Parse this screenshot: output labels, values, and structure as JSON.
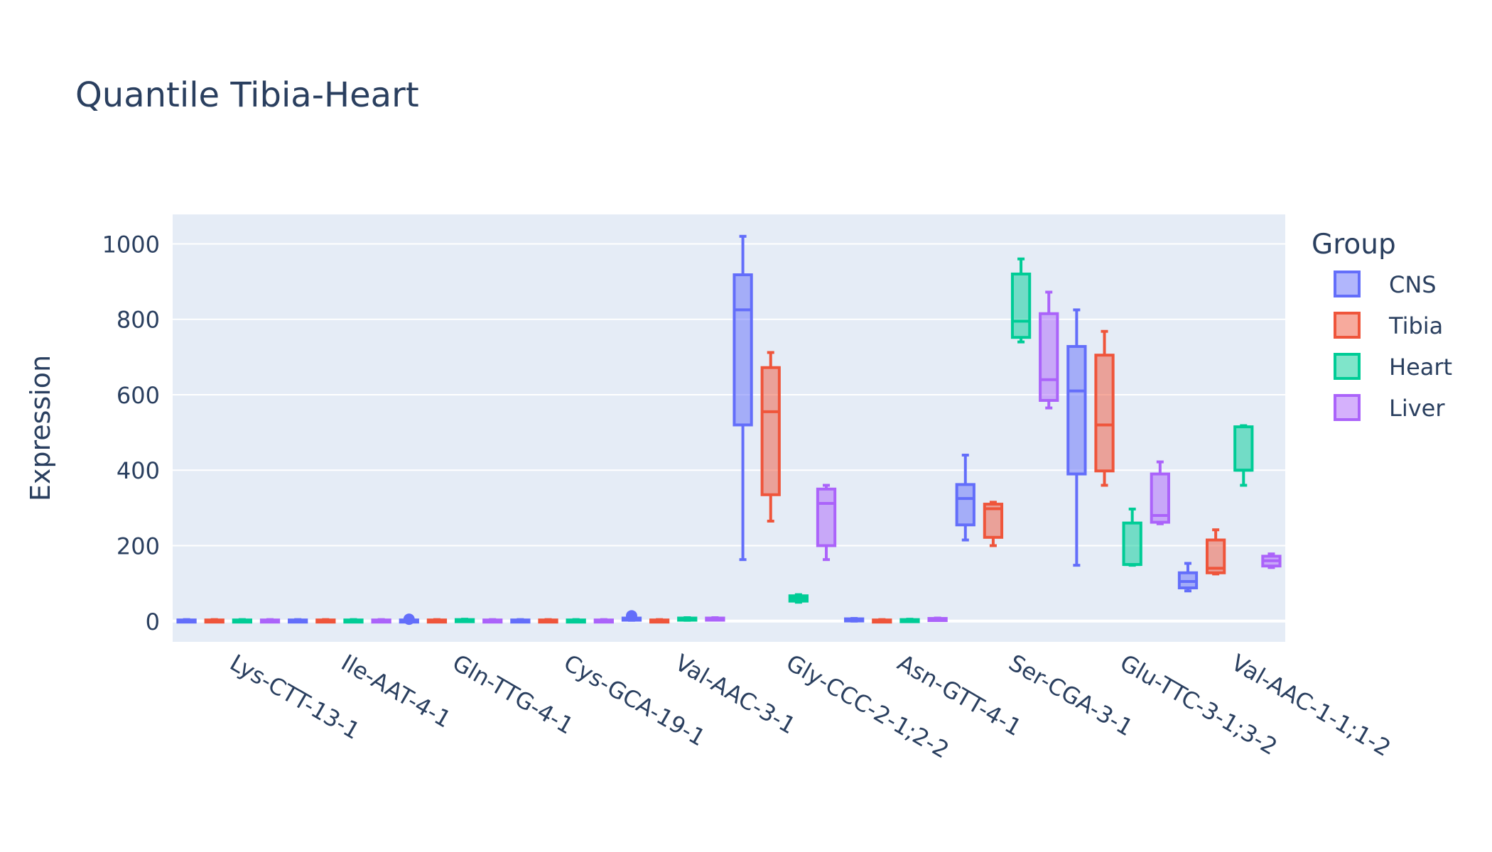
{
  "chart_data": {
    "type": "box",
    "title": "Quantile Tibia-Heart",
    "xlabel": "",
    "ylabel": "Expression",
    "ylim": [
      -55,
      1078
    ],
    "yticks": [
      0,
      200,
      400,
      600,
      800,
      1000
    ],
    "grid": true,
    "legend": {
      "title": "Group",
      "placement": "right"
    },
    "categories": [
      "Lys-CTT-13-1",
      "Ile-AAT-4-1",
      "Gln-TTG-4-1",
      "Cys-GCA-19-1",
      "Val-AAC-3-1",
      "Gly-CCC-2-1;2-2",
      "Asn-GTT-4-1",
      "Ser-CGA-3-1",
      "Glu-TTC-3-1;3-2",
      "Val-AAC-1-1;1-2"
    ],
    "series": [
      {
        "name": "CNS",
        "color": "#636efa",
        "boxes": [
          {
            "min": 0,
            "q1": 0,
            "median": 1,
            "q3": 3,
            "max": 4
          },
          {
            "min": 0,
            "q1": 0,
            "median": 1,
            "q3": 3,
            "max": 4
          },
          {
            "min": 0,
            "q1": 0,
            "median": 1,
            "q3": 3,
            "max": 4,
            "outliers": [
              5
            ]
          },
          {
            "min": 0,
            "q1": 0,
            "median": 1,
            "q3": 3,
            "max": 4
          },
          {
            "min": 2,
            "q1": 3,
            "median": 5,
            "q3": 8,
            "max": 10,
            "outliers": [
              14
            ]
          },
          {
            "min": 163,
            "q1": 520,
            "median": 825,
            "q3": 918,
            "max": 1020
          },
          {
            "min": 0,
            "q1": 1,
            "median": 3,
            "q3": 6,
            "max": 7
          },
          {
            "min": 215,
            "q1": 255,
            "median": 325,
            "q3": 362,
            "max": 440
          },
          {
            "min": 148,
            "q1": 390,
            "median": 610,
            "q3": 728,
            "max": 825
          },
          {
            "min": 80,
            "q1": 88,
            "median": 105,
            "q3": 128,
            "max": 153
          }
        ]
      },
      {
        "name": "Tibia",
        "color": "#ef553b",
        "boxes": [
          {
            "min": 0,
            "q1": 0,
            "median": 1,
            "q3": 3,
            "max": 4
          },
          {
            "min": 0,
            "q1": 0,
            "median": 1,
            "q3": 3,
            "max": 4
          },
          {
            "min": 0,
            "q1": 0,
            "median": 1,
            "q3": 3,
            "max": 4
          },
          {
            "min": 0,
            "q1": 0,
            "median": 1,
            "q3": 3,
            "max": 4
          },
          {
            "min": 0,
            "q1": 0,
            "median": 1,
            "q3": 3,
            "max": 4
          },
          {
            "min": 265,
            "q1": 335,
            "median": 555,
            "q3": 672,
            "max": 712
          },
          {
            "min": 0,
            "q1": 0,
            "median": 1,
            "q3": 3,
            "max": 4
          },
          {
            "min": 200,
            "q1": 222,
            "median": 298,
            "q3": 310,
            "max": 315
          },
          {
            "min": 360,
            "q1": 398,
            "median": 520,
            "q3": 705,
            "max": 768
          },
          {
            "min": 125,
            "q1": 128,
            "median": 140,
            "q3": 215,
            "max": 242
          }
        ]
      },
      {
        "name": "Heart",
        "color": "#00cc96",
        "boxes": [
          {
            "min": 0,
            "q1": 0,
            "median": 1,
            "q3": 3,
            "max": 4
          },
          {
            "min": 0,
            "q1": 0,
            "median": 1,
            "q3": 3,
            "max": 4
          },
          {
            "min": 0,
            "q1": 1,
            "median": 2,
            "q3": 4,
            "max": 5
          },
          {
            "min": 0,
            "q1": 0,
            "median": 1,
            "q3": 3,
            "max": 4
          },
          {
            "min": 2,
            "q1": 4,
            "median": 6,
            "q3": 8,
            "max": 9
          },
          {
            "min": 50,
            "q1": 53,
            "median": 60,
            "q3": 67,
            "max": 70
          },
          {
            "min": 0,
            "q1": 1,
            "median": 2,
            "q3": 4,
            "max": 5
          },
          {
            "min": 740,
            "q1": 752,
            "median": 795,
            "q3": 920,
            "max": 960
          },
          {
            "min": 148,
            "q1": 150,
            "median": 150,
            "q3": 260,
            "max": 297
          },
          {
            "min": 360,
            "q1": 400,
            "median": 400,
            "q3": 515,
            "max": 518
          }
        ]
      },
      {
        "name": "Liver",
        "color": "#ab63fa",
        "boxes": [
          {
            "min": 0,
            "q1": 0,
            "median": 1,
            "q3": 3,
            "max": 4
          },
          {
            "min": 0,
            "q1": 0,
            "median": 1,
            "q3": 3,
            "max": 4
          },
          {
            "min": 0,
            "q1": 0,
            "median": 1,
            "q3": 3,
            "max": 4
          },
          {
            "min": 0,
            "q1": 0,
            "median": 1,
            "q3": 3,
            "max": 4
          },
          {
            "min": 3,
            "q1": 4,
            "median": 6,
            "q3": 8,
            "max": 9
          },
          {
            "min": 163,
            "q1": 200,
            "median": 312,
            "q3": 350,
            "max": 360
          },
          {
            "min": 2,
            "q1": 3,
            "median": 5,
            "q3": 7,
            "max": 8
          },
          {
            "min": 565,
            "q1": 585,
            "median": 640,
            "q3": 815,
            "max": 872
          },
          {
            "min": 258,
            "q1": 262,
            "median": 280,
            "q3": 390,
            "max": 422
          },
          {
            "min": 142,
            "q1": 146,
            "median": 160,
            "q3": 172,
            "max": 178
          }
        ]
      }
    ]
  }
}
